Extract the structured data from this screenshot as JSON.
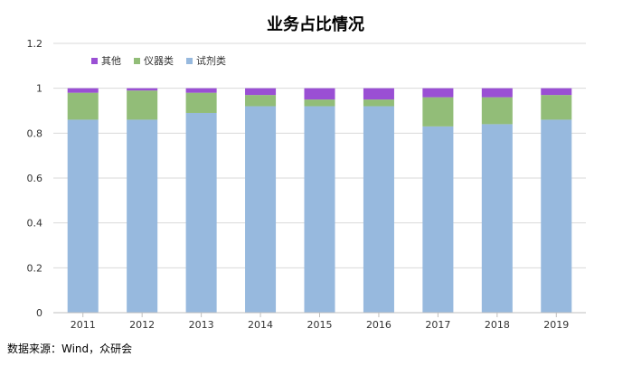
{
  "chart_data": {
    "type": "bar",
    "stacked": true,
    "title": "业务占比情况",
    "categories": [
      "2011",
      "2012",
      "2013",
      "2014",
      "2015",
      "2016",
      "2017",
      "2018",
      "2019"
    ],
    "series": [
      {
        "name": "试剂类",
        "color": "#97b9de",
        "values": [
          0.86,
          0.86,
          0.89,
          0.92,
          0.92,
          0.92,
          0.83,
          0.84,
          0.86
        ]
      },
      {
        "name": "仪器类",
        "color": "#92bd78",
        "values": [
          0.12,
          0.13,
          0.09,
          0.05,
          0.03,
          0.03,
          0.13,
          0.12,
          0.11
        ]
      },
      {
        "name": "其他",
        "color": "#9a4fd4",
        "values": [
          0.02,
          0.01,
          0.02,
          0.03,
          0.05,
          0.05,
          0.04,
          0.04,
          0.03
        ]
      }
    ],
    "yticks": [
      "0",
      "0.2",
      "0.4",
      "0.6",
      "0.8",
      "1",
      "1.2"
    ],
    "ylim": [
      0,
      1.2
    ],
    "legend_order": [
      "其他",
      "仪器类",
      "试剂类"
    ],
    "legend_position": "top-left",
    "grid": true
  },
  "source_note": "数据来源：Wind，众研会"
}
